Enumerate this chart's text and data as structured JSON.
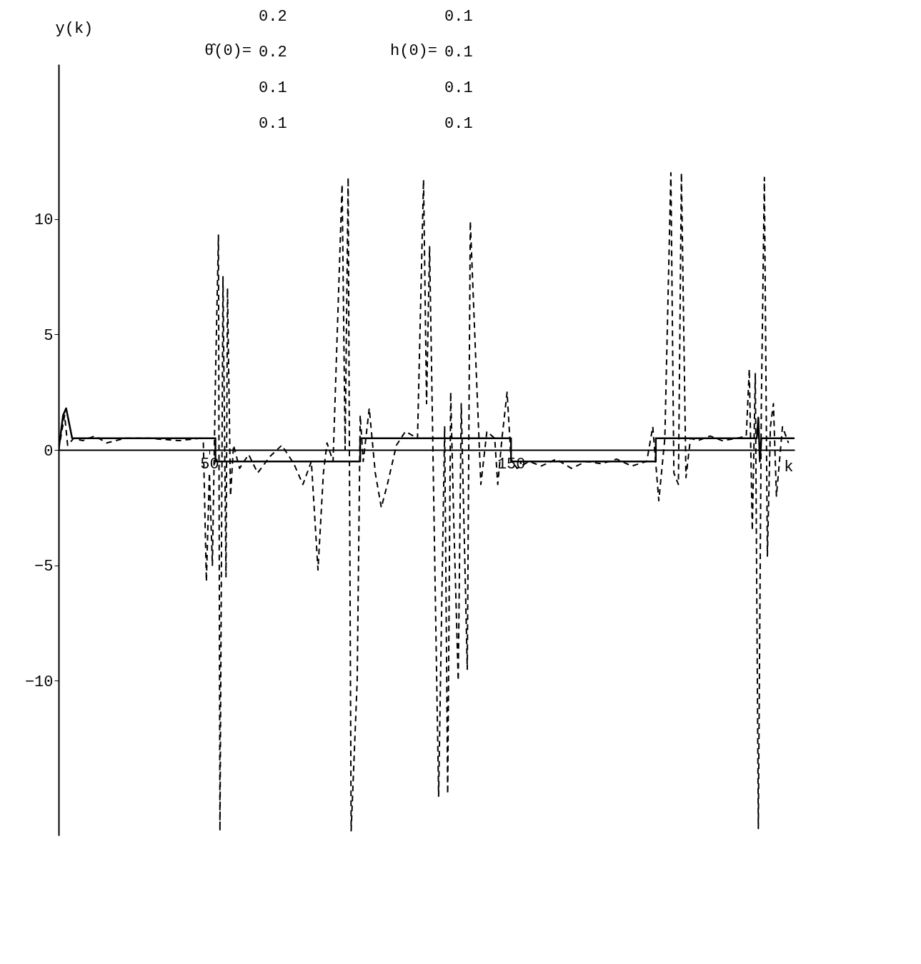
{
  "chart_data": {
    "type": "line",
    "xlabel": "k",
    "ylabel": "y(k)",
    "annotations": [
      "θ̂(0)=",
      "0.2",
      "0.2",
      "0.1",
      "0.1",
      "h(0)=",
      "0.1",
      "0.1",
      "0.1",
      "0.1"
    ],
    "xlim": [
      0,
      244
    ],
    "ylim": [
      -16.7,
      16.7
    ],
    "xticks": [
      50,
      150
    ],
    "yticks": [
      -10,
      -5,
      0,
      5,
      10
    ],
    "grid": false,
    "series": [
      {
        "color": "#000000",
        "line_style": "solid",
        "x": [
          0,
          1.5,
          2.5,
          4.5,
          52,
          52,
          100,
          100,
          150,
          150,
          198,
          198,
          231.5,
          232,
          232.5,
          233,
          244
        ],
        "values": [
          0,
          1.5,
          1.8,
          0.5,
          0.5,
          -0.5,
          -0.5,
          0.5,
          0.5,
          -0.5,
          -0.5,
          0.5,
          0.5,
          1.4,
          -0.5,
          0.5,
          0.5
        ]
      },
      {
        "color": "#000000",
        "line_style": "dashed",
        "x": [
          0,
          2,
          3,
          5,
          8,
          12,
          16,
          22,
          30,
          40,
          47,
          48,
          49,
          50,
          51,
          52,
          53,
          53.5,
          54.5,
          55.5,
          56,
          57,
          58,
          60,
          63,
          66,
          70,
          74,
          78,
          81,
          83.8,
          86,
          87.8,
          89,
          91,
          94,
          95,
          96,
          97,
          99,
          100,
          101,
          103,
          105,
          107,
          109,
          112,
          115,
          119,
          121,
          122,
          123,
          126,
          128,
          129,
          130,
          131,
          132.5,
          133.5,
          135.5,
          136.5,
          138.5,
          140,
          142,
          144.6,
          145.6,
          147,
          148.7,
          150,
          152,
          156,
          160,
          165,
          170,
          175,
          180,
          185,
          190,
          195,
          197,
          199,
          201,
          203,
          204,
          205.5,
          206.5,
          208,
          209.5,
          212,
          216,
          220,
          225,
          228,
          229,
          230,
          231,
          232,
          233,
          234,
          235,
          236,
          237,
          238,
          240,
          242
        ],
        "values": [
          0,
          1.5,
          0.2,
          0.5,
          0.4,
          0.6,
          0.3,
          0.5,
          0.5,
          0.4,
          0.5,
          0.3,
          -5.7,
          -1,
          -5,
          3,
          9.3,
          -16.5,
          7.5,
          -5.5,
          7,
          -2,
          0.2,
          -0.8,
          -0.2,
          -1,
          -0.3,
          0.2,
          -0.6,
          -1.5,
          -0.5,
          -5.2,
          -1,
          0.3,
          -0.5,
          11.5,
          0,
          11.8,
          -16.5,
          -10,
          1.5,
          -0.5,
          1.8,
          -1,
          -2.5,
          -1.5,
          0.2,
          0.8,
          0.5,
          11.7,
          2,
          8.8,
          -15,
          1,
          -14.9,
          2.5,
          -3,
          -10,
          2,
          -9.5,
          9.9,
          3.3,
          -1.5,
          0.8,
          0.5,
          -1.5,
          0.5,
          2.5,
          -0.4,
          -0.8,
          -0.5,
          -0.7,
          -0.4,
          -0.8,
          -0.5,
          -0.6,
          -0.4,
          -0.7,
          -0.5,
          1,
          -2.2,
          0.5,
          12,
          -1,
          -1.5,
          12,
          -1.2,
          0.5,
          0.4,
          0.6,
          0.4,
          0.5,
          0.6,
          3.5,
          -3.5,
          3.3,
          -16.4,
          2,
          11.8,
          -4.6,
          1,
          2,
          -2,
          1,
          0.3
        ]
      }
    ]
  }
}
